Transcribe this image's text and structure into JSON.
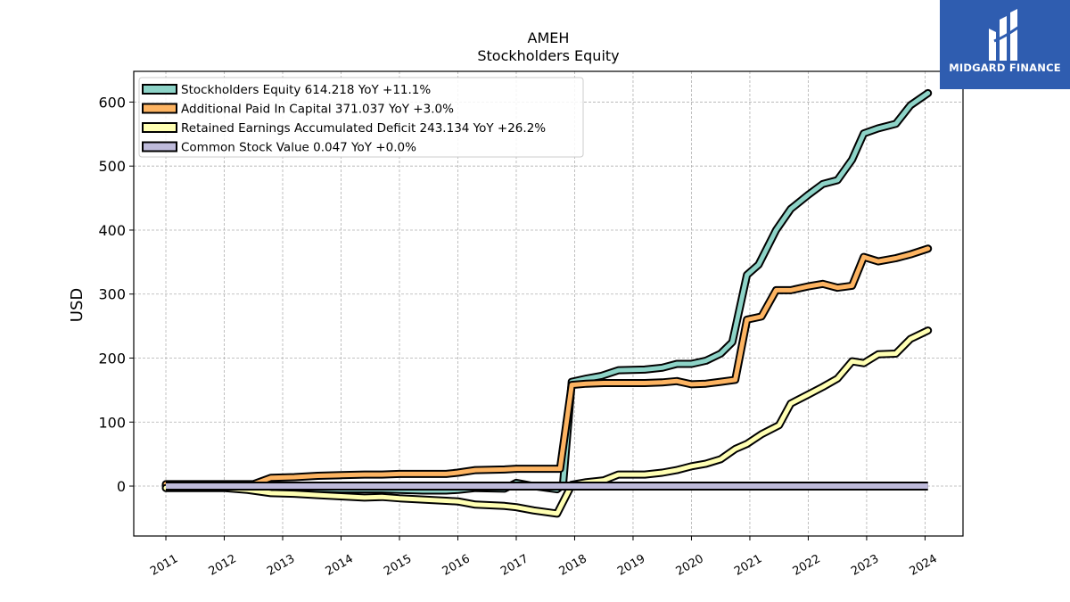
{
  "brand": {
    "name": "MIDGARD FINANCE",
    "color": "#2f5db0"
  },
  "chart_data": {
    "type": "line",
    "title": "AMEH",
    "subtitle": "Stockholders  Equity",
    "ylabel": "USD",
    "xlabel": "",
    "ylim": [
      -78,
      648
    ],
    "xlim": [
      2010.45,
      2024.65
    ],
    "yticks": [
      0,
      100,
      200,
      300,
      400,
      500,
      600
    ],
    "xticks": [
      "2011",
      "2012",
      "2013",
      "2014",
      "2015",
      "2016",
      "2017",
      "2018",
      "2019",
      "2020",
      "2021",
      "2022",
      "2023",
      "2024"
    ],
    "grid": true,
    "legend_position": "top-left",
    "series": [
      {
        "name": "Stockholders Equity",
        "legend": "Stockholders Equity  614.218 YoY +11.1%",
        "color": "#8dd3c7",
        "points": [
          [
            2011.0,
            1
          ],
          [
            2011.5,
            1
          ],
          [
            2012.0,
            1
          ],
          [
            2012.4,
            1
          ],
          [
            2012.8,
            -3
          ],
          [
            2013.2,
            -3
          ],
          [
            2013.6,
            -4
          ],
          [
            2014.0,
            -5
          ],
          [
            2014.4,
            -5
          ],
          [
            2014.7,
            -5
          ],
          [
            2015.0,
            -6
          ],
          [
            2015.4,
            -7
          ],
          [
            2015.8,
            -7
          ],
          [
            2016.0,
            -6
          ],
          [
            2016.3,
            -3
          ],
          [
            2016.8,
            -4
          ],
          [
            2017.0,
            5
          ],
          [
            2017.3,
            0
          ],
          [
            2017.7,
            -5
          ],
          [
            2017.8,
            2
          ],
          [
            2017.95,
            163
          ],
          [
            2018.2,
            168
          ],
          [
            2018.45,
            172
          ],
          [
            2018.75,
            181
          ],
          [
            2019.2,
            182
          ],
          [
            2019.5,
            185
          ],
          [
            2019.75,
            191
          ],
          [
            2020.0,
            191
          ],
          [
            2020.25,
            196
          ],
          [
            2020.5,
            207
          ],
          [
            2020.7,
            225
          ],
          [
            2020.95,
            330
          ],
          [
            2021.15,
            346
          ],
          [
            2021.45,
            400
          ],
          [
            2021.7,
            433
          ],
          [
            2022.0,
            455
          ],
          [
            2022.25,
            472
          ],
          [
            2022.5,
            478
          ],
          [
            2022.75,
            510
          ],
          [
            2022.95,
            551
          ],
          [
            2023.2,
            559
          ],
          [
            2023.5,
            566
          ],
          [
            2023.75,
            595
          ],
          [
            2024.05,
            614
          ]
        ]
      },
      {
        "name": "Additional Paid In Capital",
        "legend": "Additional Paid In Capital  371.037 YoY +3.0%",
        "color": "#fdb462",
        "points": [
          [
            2011.0,
            3
          ],
          [
            2011.5,
            3
          ],
          [
            2012.0,
            3
          ],
          [
            2012.5,
            3
          ],
          [
            2012.8,
            13
          ],
          [
            2013.2,
            14
          ],
          [
            2013.6,
            16
          ],
          [
            2014.0,
            17
          ],
          [
            2014.4,
            18
          ],
          [
            2014.7,
            18
          ],
          [
            2015.0,
            19
          ],
          [
            2015.4,
            19
          ],
          [
            2015.8,
            19
          ],
          [
            2016.0,
            21
          ],
          [
            2016.3,
            25
          ],
          [
            2016.8,
            26
          ],
          [
            2017.0,
            27
          ],
          [
            2017.5,
            27
          ],
          [
            2017.75,
            27
          ],
          [
            2017.95,
            158
          ],
          [
            2018.2,
            160
          ],
          [
            2018.5,
            161
          ],
          [
            2018.75,
            161
          ],
          [
            2019.2,
            161
          ],
          [
            2019.5,
            162
          ],
          [
            2019.75,
            164
          ],
          [
            2020.0,
            159
          ],
          [
            2020.25,
            160
          ],
          [
            2020.5,
            163
          ],
          [
            2020.75,
            166
          ],
          [
            2020.95,
            260
          ],
          [
            2021.2,
            265
          ],
          [
            2021.45,
            306
          ],
          [
            2021.7,
            306
          ],
          [
            2022.0,
            312
          ],
          [
            2022.25,
            316
          ],
          [
            2022.5,
            310
          ],
          [
            2022.75,
            313
          ],
          [
            2022.95,
            358
          ],
          [
            2023.2,
            351
          ],
          [
            2023.5,
            356
          ],
          [
            2023.75,
            362
          ],
          [
            2024.05,
            371
          ]
        ]
      },
      {
        "name": "Retained Earnings Accumulated Deficit",
        "legend": "Retained Earnings Accumulated Deficit  243.134 YoY +26.2%",
        "color": "#ffffb3",
        "points": [
          [
            2011.0,
            -3
          ],
          [
            2011.5,
            -3
          ],
          [
            2012.0,
            -3
          ],
          [
            2012.4,
            -6
          ],
          [
            2012.8,
            -11
          ],
          [
            2013.2,
            -12
          ],
          [
            2013.6,
            -14
          ],
          [
            2014.0,
            -16
          ],
          [
            2014.4,
            -18
          ],
          [
            2014.7,
            -17
          ],
          [
            2015.0,
            -19
          ],
          [
            2015.4,
            -21
          ],
          [
            2015.8,
            -23
          ],
          [
            2016.0,
            -24
          ],
          [
            2016.3,
            -29
          ],
          [
            2016.8,
            -31
          ],
          [
            2017.0,
            -33
          ],
          [
            2017.3,
            -38
          ],
          [
            2017.7,
            -43
          ],
          [
            2017.95,
            2
          ],
          [
            2018.2,
            6
          ],
          [
            2018.5,
            9
          ],
          [
            2018.75,
            18
          ],
          [
            2019.2,
            18
          ],
          [
            2019.5,
            21
          ],
          [
            2019.75,
            25
          ],
          [
            2020.0,
            31
          ],
          [
            2020.25,
            35
          ],
          [
            2020.5,
            42
          ],
          [
            2020.75,
            58
          ],
          [
            2020.95,
            66
          ],
          [
            2021.2,
            81
          ],
          [
            2021.5,
            95
          ],
          [
            2021.7,
            129
          ],
          [
            2022.0,
            143
          ],
          [
            2022.25,
            155
          ],
          [
            2022.5,
            168
          ],
          [
            2022.75,
            195
          ],
          [
            2022.95,
            192
          ],
          [
            2023.2,
            206
          ],
          [
            2023.5,
            207
          ],
          [
            2023.75,
            230
          ],
          [
            2024.05,
            243
          ]
        ]
      },
      {
        "name": "Common Stock Value",
        "legend": "Common Stock Value  0.047 YoY +0.0%",
        "color": "#bebada",
        "points": [
          [
            2011.0,
            0.05
          ],
          [
            2024.05,
            0.05
          ]
        ]
      }
    ]
  }
}
